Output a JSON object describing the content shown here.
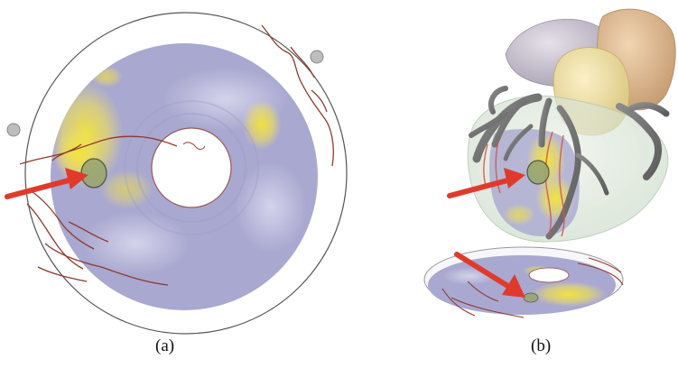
{
  "captions": {
    "a": "(a)",
    "b": "(b)"
  },
  "colors": {
    "map_base": "#a9a8d0",
    "map_highlight": "#f2e23a",
    "vessel": "#8f3a2c",
    "arrow": "#e03a2c",
    "lesion": "#9aa670",
    "outer_ring": "#555555",
    "marker": "#bdbdbd",
    "vessel_tree": "#777777",
    "atrium_left": "#c9c2cf",
    "atrium_right": "#dcb690",
    "aorta": "#efe1a8",
    "heart_shell": "#dbe8d8"
  }
}
